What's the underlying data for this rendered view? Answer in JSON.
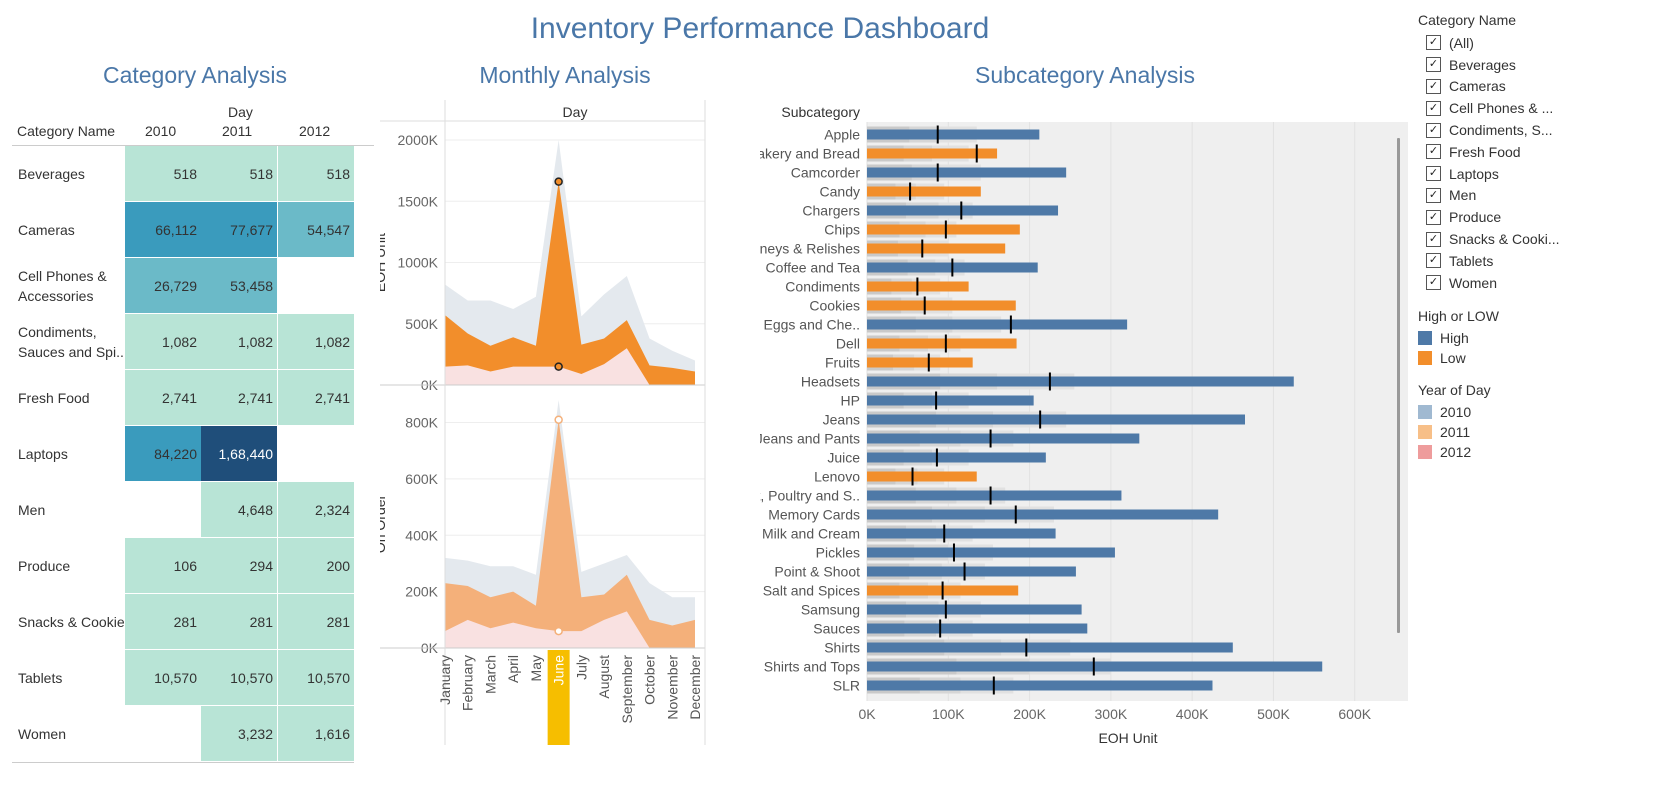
{
  "dashboard_title": "Inventory Performance Dashboard",
  "sections": {
    "category": "Category Analysis",
    "monthly": "Monthly Analysis",
    "subcategory": "Subcategory Analysis"
  },
  "category_table": {
    "header_day": "Day",
    "header_name": "Category Name",
    "years": [
      "2010",
      "2011",
      "2012"
    ],
    "rows": [
      {
        "name": "Beverages",
        "values": [
          "518",
          "518",
          "518"
        ]
      },
      {
        "name": "Cameras",
        "values": [
          "66,112",
          "77,677",
          "54,547"
        ]
      },
      {
        "name": "Cell Phones & Accessories",
        "values": [
          "26,729",
          "53,458",
          ""
        ]
      },
      {
        "name": "Condiments, Sauces and Spi..",
        "values": [
          "1,082",
          "1,082",
          "1,082"
        ]
      },
      {
        "name": "Fresh Food",
        "values": [
          "2,741",
          "2,741",
          "2,741"
        ]
      },
      {
        "name": "Laptops",
        "values": [
          "84,220",
          "1,68,440",
          ""
        ]
      },
      {
        "name": "Men",
        "values": [
          "",
          "4,648",
          "2,324"
        ]
      },
      {
        "name": "Produce",
        "values": [
          "106",
          "294",
          "200"
        ]
      },
      {
        "name": "Snacks & Cookies",
        "values": [
          "281",
          "281",
          "281"
        ]
      },
      {
        "name": "Tablets",
        "values": [
          "10,570",
          "10,570",
          "10,570"
        ]
      },
      {
        "name": "Women",
        "values": [
          "",
          "3,232",
          "1,616"
        ]
      }
    ],
    "raw_values": [
      [
        518,
        518,
        518
      ],
      [
        66112,
        77677,
        54547
      ],
      [
        26729,
        53458,
        null
      ],
      [
        1082,
        1082,
        1082
      ],
      [
        2741,
        2741,
        2741
      ],
      [
        84220,
        168440,
        null
      ],
      [
        null,
        4648,
        2324
      ],
      [
        106,
        294,
        200
      ],
      [
        281,
        281,
        281
      ],
      [
        10570,
        10570,
        10570
      ],
      [
        null,
        3232,
        1616
      ]
    ],
    "colors": {
      "low": "#b8e4d6",
      "mid": "#6bbac8",
      "high": "#3a9bbd",
      "max": "#1f4e7a"
    }
  },
  "chart_data": [
    {
      "type": "area",
      "title": "Monthly Analysis",
      "header": "Day",
      "xlabel": "",
      "ylabel": "EOH Unit",
      "categories": [
        "January",
        "February",
        "March",
        "April",
        "May",
        "June",
        "July",
        "August",
        "September",
        "October",
        "November",
        "December"
      ],
      "highlight": "June",
      "ylim": [
        0,
        2000000
      ],
      "yticks": [
        "0K",
        "500K",
        "1000K",
        "1500K",
        "2000K"
      ],
      "ytick_values": [
        0,
        500000,
        1000000,
        1500000,
        2000000
      ],
      "series": [
        {
          "values": [
            820000,
            690000,
            690000,
            620000,
            720000,
            2000000,
            560000,
            740000,
            890000,
            380000,
            280000,
            200000
          ],
          "color": "#e4e9ee"
        },
        {
          "values": [
            570000,
            420000,
            320000,
            390000,
            320000,
            1660000,
            330000,
            380000,
            530000,
            160000,
            140000,
            110000
          ],
          "color": "#f28e2b"
        },
        {
          "values": [
            150000,
            160000,
            110000,
            150000,
            150000,
            150000,
            90000,
            170000,
            300000,
            0,
            0,
            0
          ],
          "color": "#f9e1e1"
        }
      ],
      "markers": [
        1660000,
        150000
      ]
    },
    {
      "type": "area",
      "xlabel": "",
      "ylabel": "On Order",
      "categories": [
        "January",
        "February",
        "March",
        "April",
        "May",
        "June",
        "July",
        "August",
        "September",
        "October",
        "November",
        "December"
      ],
      "ylim": [
        0,
        880000
      ],
      "yticks": [
        "0K",
        "200K",
        "400K",
        "600K",
        "800K"
      ],
      "ytick_values": [
        0,
        200000,
        400000,
        600000,
        800000
      ],
      "series": [
        {
          "values": [
            320000,
            310000,
            290000,
            290000,
            260000,
            880000,
            270000,
            300000,
            330000,
            230000,
            180000,
            180000
          ],
          "color": "#e4e9ee"
        },
        {
          "values": [
            230000,
            220000,
            180000,
            200000,
            150000,
            810000,
            180000,
            190000,
            260000,
            100000,
            80000,
            100000
          ],
          "color": "#f4b07a"
        },
        {
          "values": [
            60000,
            100000,
            70000,
            90000,
            70000,
            60000,
            60000,
            100000,
            130000,
            0,
            0,
            0
          ],
          "color": "#f9e1e1"
        }
      ],
      "markers": [
        810000,
        60000
      ]
    },
    {
      "type": "bar",
      "title": "Subcategory Analysis",
      "header": "Subcategory",
      "xlabel": "EOH Unit",
      "ylabel": "",
      "xlim": [
        0,
        620000
      ],
      "xticks": [
        "0K",
        "100K",
        "200K",
        "300K",
        "400K",
        "500K",
        "600K"
      ],
      "xtick_values": [
        0,
        100000,
        200000,
        300000,
        400000,
        500000,
        600000
      ],
      "categories": [
        "Apple",
        "Bakery and Bread",
        "Camcorder",
        "Candy",
        "Chargers",
        "Chips",
        "Chutneys & Relishes",
        "Coffee and Tea",
        "Condiments",
        "Cookies",
        "Dairy, Eggs and Che..",
        "Dell",
        "Fruits",
        "Headsets",
        "HP",
        "Jeans",
        "Jeans and Pants",
        "Juice",
        "Lenovo",
        "Meat, Poultry and S..",
        "Memory Cards",
        "Milk and Cream",
        "Pickles",
        "Point & Shoot",
        "Salt and Spices",
        "Samsung",
        "Sauces",
        "Shirts",
        "Shirts and Tops",
        "SLR"
      ],
      "values": [
        212000,
        160000,
        245000,
        140000,
        235000,
        188000,
        170000,
        210000,
        125000,
        183000,
        320000,
        184000,
        130000,
        525000,
        205000,
        465000,
        335000,
        220000,
        135000,
        313000,
        432000,
        232000,
        305000,
        257000,
        186000,
        264000,
        271000,
        450000,
        560000,
        425000
      ],
      "levels": [
        "High",
        "Low",
        "High",
        "Low",
        "High",
        "Low",
        "Low",
        "High",
        "Low",
        "Low",
        "High",
        "Low",
        "Low",
        "High",
        "High",
        "High",
        "High",
        "High",
        "Low",
        "High",
        "High",
        "High",
        "High",
        "High",
        "Low",
        "High",
        "High",
        "High",
        "High",
        "High"
      ],
      "reference": [
        87000,
        135000,
        87000,
        53000,
        116000,
        97000,
        68000,
        105000,
        62000,
        71000,
        177000,
        97000,
        76000,
        225000,
        85000,
        213000,
        152000,
        86000,
        56000,
        152000,
        183000,
        95000,
        107000,
        120000,
        93000,
        97000,
        90000,
        196000,
        279000,
        156000
      ],
      "background_bars": [
        [
          52000,
          85000,
          135000
        ],
        [
          45000,
          80000,
          125000
        ],
        [
          55000,
          90000,
          140000
        ],
        [
          35000,
          60000,
          95000
        ],
        [
          48000,
          88000,
          130000
        ],
        [
          40000,
          72000,
          110000
        ],
        [
          38000,
          68000,
          100000
        ],
        [
          50000,
          84000,
          120000
        ],
        [
          30000,
          55000,
          90000
        ],
        [
          42000,
          70000,
          105000
        ],
        [
          60000,
          105000,
          165000
        ],
        [
          40000,
          75000,
          115000
        ],
        [
          32000,
          58000,
          90000
        ],
        [
          90000,
          160000,
          255000
        ],
        [
          45000,
          80000,
          125000
        ],
        [
          85000,
          155000,
          245000
        ],
        [
          65000,
          115000,
          180000
        ],
        [
          45000,
          80000,
          125000
        ],
        [
          35000,
          62000,
          95000
        ],
        [
          60000,
          110000,
          170000
        ],
        [
          80000,
          145000,
          230000
        ],
        [
          48000,
          85000,
          130000
        ],
        [
          58000,
          100000,
          155000
        ],
        [
          52000,
          92000,
          145000
        ],
        [
          40000,
          75000,
          115000
        ],
        [
          48000,
          88000,
          140000
        ],
        [
          46000,
          85000,
          130000
        ],
        [
          95000,
          165000,
          250000
        ],
        [
          110000,
          200000,
          300000
        ],
        [
          65000,
          115000,
          180000
        ]
      ],
      "legend": {
        "High": "#4e79a7",
        "Low": "#f28e2b"
      }
    }
  ],
  "legends": {
    "category_title": "Category Name",
    "category_items": [
      "(All)",
      "Beverages",
      "Cameras",
      "Cell Phones & ...",
      "Condiments, S...",
      "Fresh Food",
      "Laptops",
      "Men",
      "Produce",
      "Snacks & Cooki...",
      "Tablets",
      "Women"
    ],
    "check_glyph": "✓",
    "level_title": "High or LOW",
    "level_items": [
      {
        "label": "High",
        "color": "#4e79a7"
      },
      {
        "label": "Low",
        "color": "#f28e2b"
      }
    ],
    "year_title": "Year of Day",
    "year_items": [
      {
        "label": "2010",
        "color": "#a0b9d1"
      },
      {
        "label": "2011",
        "color": "#f7bf88"
      },
      {
        "label": "2012",
        "color": "#ee9c9c"
      }
    ]
  }
}
